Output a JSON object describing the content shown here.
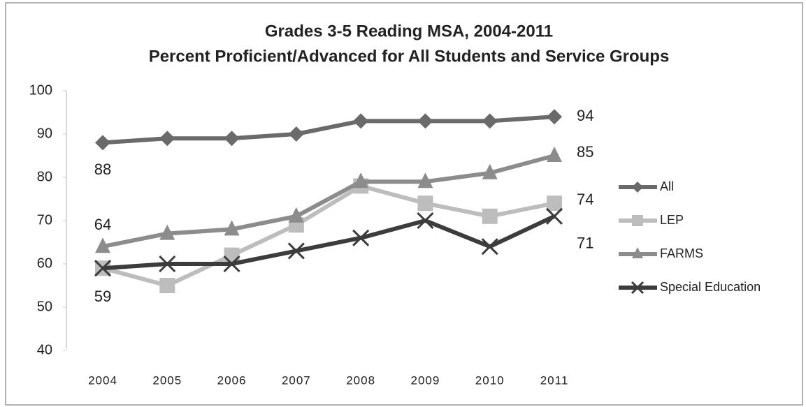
{
  "chart_data": {
    "type": "line",
    "title": "Grades 3-5 Reading MSA, 2004-2011",
    "subtitle": "Percent Proficient/Advanced for All Students and Service Groups",
    "categories": [
      "2004",
      "2005",
      "2006",
      "2007",
      "2008",
      "2009",
      "2010",
      "2011"
    ],
    "ylim": [
      40,
      100
    ],
    "yticks": [
      40,
      50,
      60,
      70,
      80,
      90,
      100
    ],
    "legend": "right",
    "series": [
      {
        "name": "All",
        "color": "#6a6a6a",
        "marker": "diamond",
        "values": [
          88,
          89,
          89,
          90,
          93,
          93,
          93,
          94
        ],
        "value_labels": [
          "88",
          null,
          null,
          null,
          null,
          null,
          null,
          "94"
        ]
      },
      {
        "name": "LEP",
        "color": "#bdbdbd",
        "marker": "square",
        "values": [
          59,
          55,
          62,
          69,
          78,
          74,
          71,
          74
        ],
        "value_labels": [
          null,
          null,
          null,
          null,
          null,
          null,
          null,
          "74"
        ]
      },
      {
        "name": "FARMS",
        "color": "#8c8c8c",
        "marker": "triangle",
        "values": [
          64,
          67,
          68,
          71,
          79,
          79,
          81,
          85
        ],
        "value_labels": [
          "64",
          null,
          null,
          null,
          null,
          null,
          null,
          "85"
        ]
      },
      {
        "name": "Special Education",
        "color": "#3c3c3c",
        "marker": "x",
        "values": [
          59,
          60,
          60,
          63,
          66,
          70,
          64,
          71
        ],
        "value_labels": [
          "59",
          null,
          null,
          null,
          null,
          null,
          null,
          "71"
        ]
      }
    ]
  }
}
